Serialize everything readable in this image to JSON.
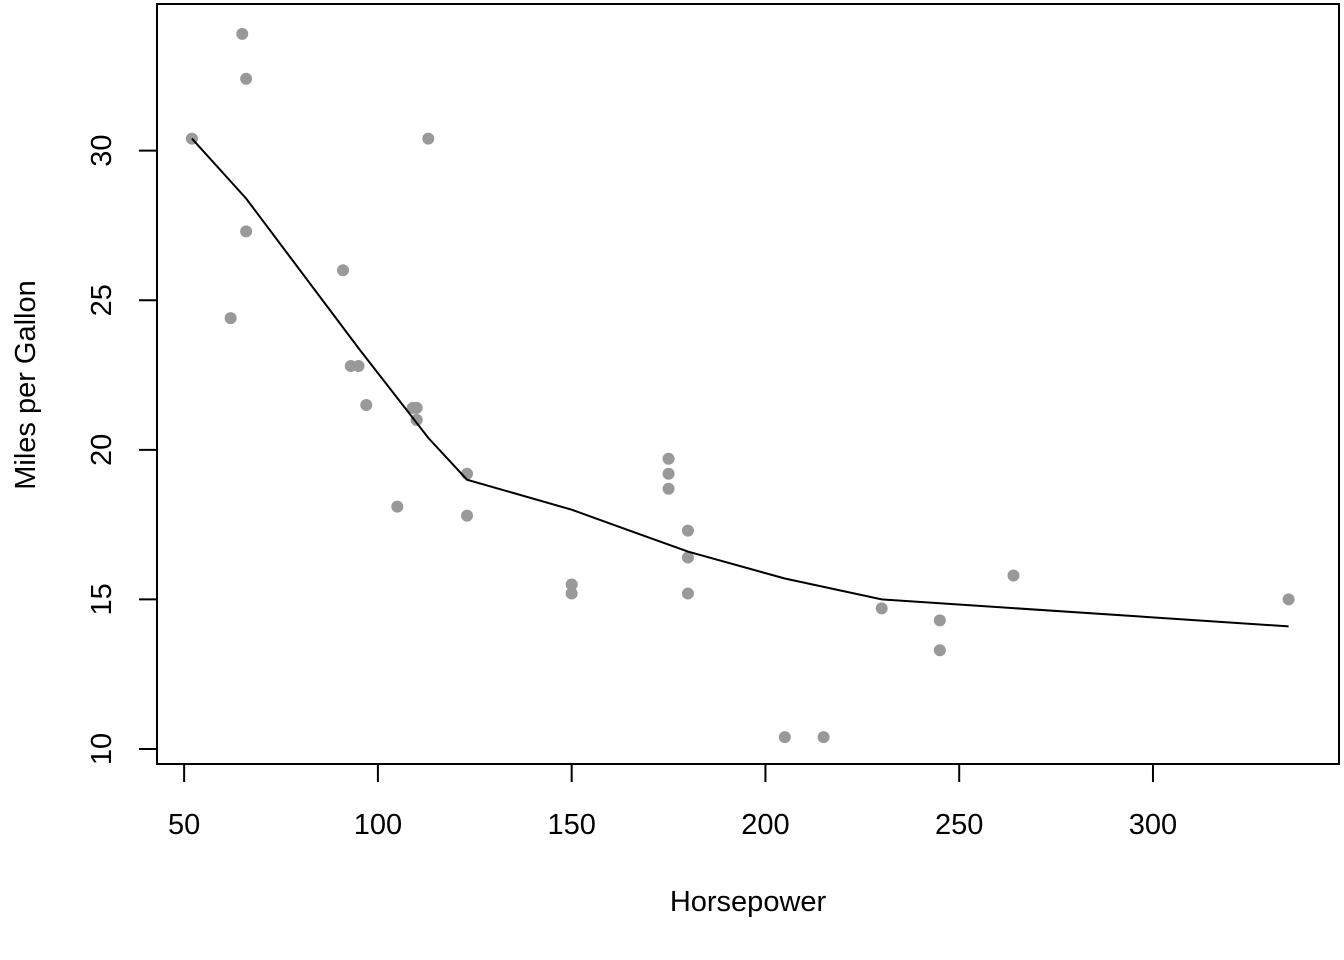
{
  "chart_data": {
    "type": "scatter",
    "title": "",
    "xlabel": "Horsepower",
    "ylabel": "Miles per Gallon",
    "xlim": [
      43,
      348
    ],
    "ylim": [
      9.5,
      34.9
    ],
    "xticks": [
      50,
      100,
      150,
      200,
      250,
      300
    ],
    "yticks": [
      10,
      15,
      20,
      25,
      30
    ],
    "grid": false,
    "legend": "none",
    "colors": {
      "points": "#999999",
      "line": "#000000",
      "axes": "#000000"
    },
    "series": [
      {
        "type": "scatter",
        "x": [
          110,
          110,
          93,
          110,
          175,
          105,
          245,
          62,
          95,
          123,
          123,
          180,
          180,
          180,
          205,
          215,
          230,
          66,
          52,
          65,
          97,
          150,
          150,
          245,
          175,
          66,
          91,
          113,
          264,
          175,
          335,
          109
        ],
        "y": [
          21.0,
          21.0,
          22.8,
          21.4,
          18.7,
          18.1,
          14.3,
          24.4,
          22.8,
          19.2,
          17.8,
          16.4,
          17.3,
          15.2,
          10.4,
          10.4,
          14.7,
          32.4,
          30.4,
          33.9,
          21.5,
          15.5,
          15.2,
          13.3,
          19.2,
          27.3,
          26.0,
          30.4,
          15.8,
          19.7,
          15.0,
          21.4
        ]
      },
      {
        "type": "line",
        "x": [
          52,
          66,
          95,
          113,
          123,
          150,
          180,
          205,
          230,
          335
        ],
        "y": [
          30.4,
          28.4,
          23.4,
          20.4,
          19.0,
          18.0,
          16.6,
          15.7,
          15.0,
          14.1
        ]
      }
    ]
  }
}
